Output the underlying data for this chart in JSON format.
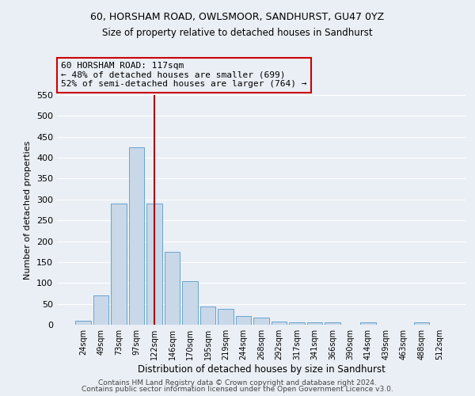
{
  "title": "60, HORSHAM ROAD, OWLSMOOR, SANDHURST, GU47 0YZ",
  "subtitle": "Size of property relative to detached houses in Sandhurst",
  "xlabel": "Distribution of detached houses by size in Sandhurst",
  "ylabel": "Number of detached properties",
  "bar_labels": [
    "24sqm",
    "49sqm",
    "73sqm",
    "97sqm",
    "122sqm",
    "146sqm",
    "170sqm",
    "195sqm",
    "219sqm",
    "244sqm",
    "268sqm",
    "292sqm",
    "317sqm",
    "341sqm",
    "366sqm",
    "390sqm",
    "414sqm",
    "439sqm",
    "463sqm",
    "488sqm",
    "512sqm"
  ],
  "bar_heights": [
    10,
    70,
    290,
    425,
    290,
    175,
    105,
    43,
    38,
    20,
    18,
    8,
    5,
    5,
    5,
    0,
    5,
    0,
    0,
    5,
    0
  ],
  "bar_color": "#c8d8e8",
  "bar_edge_color": "#5599cc",
  "red_line_index": 4,
  "red_line_color": "#aa0000",
  "annotation_text": "60 HORSHAM ROAD: 117sqm\n← 48% of detached houses are smaller (699)\n52% of semi-detached houses are larger (764) →",
  "annotation_box_color": "#cc0000",
  "annotation_text_color": "#000000",
  "ylim": [
    0,
    550
  ],
  "background_color": "#eaeff5",
  "grid_color": "#ffffff",
  "footer_line1": "Contains HM Land Registry data © Crown copyright and database right 2024.",
  "footer_line2": "Contains public sector information licensed under the Open Government Licence v3.0."
}
